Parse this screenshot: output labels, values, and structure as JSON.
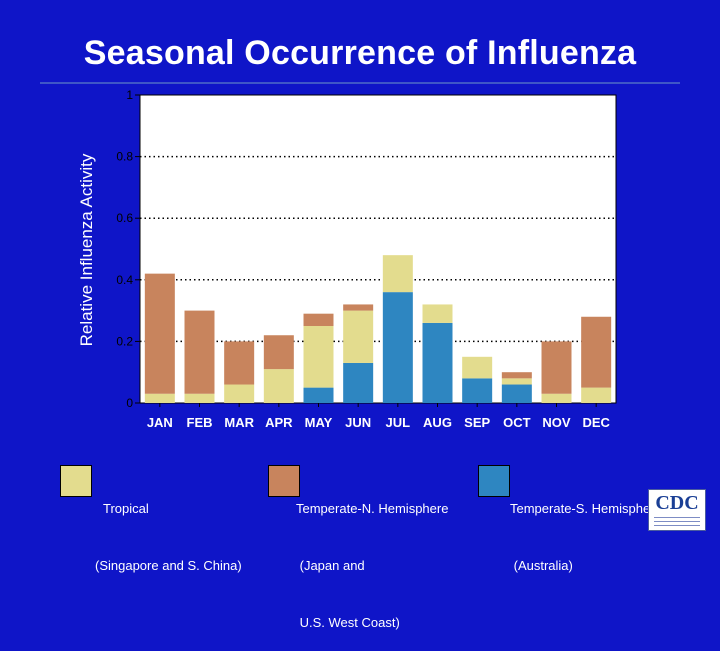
{
  "title": "Seasonal Occurrence of Influenza",
  "logo_text": "CDC",
  "colors": {
    "background": "#0f15c8",
    "tropical": "#e3dc8e",
    "temperate_north": "#c8845d",
    "temperate_south": "#2e86c1"
  },
  "legend": [
    {
      "key": "tropical",
      "lines": [
        "Tropical",
        "(Singapore and S. China)"
      ]
    },
    {
      "key": "temperate_north",
      "lines": [
        "Temperate-N. Hemisphere",
        " (Japan and",
        " U.S. West Coast)"
      ]
    },
    {
      "key": "temperate_south",
      "lines": [
        "Temperate-S. Hemisphere",
        " (Australia)"
      ]
    }
  ],
  "chart_data": {
    "type": "bar",
    "stacked": true,
    "ylabel": "Relative Influenza Activity",
    "xlabel": "",
    "ylim": [
      0,
      1
    ],
    "y_ticks": [
      0,
      0.2,
      0.4,
      0.6,
      0.8,
      1
    ],
    "y_tick_labels": [
      "0",
      "0.2",
      "0.4",
      "0.6",
      "0.8",
      "1"
    ],
    "grid": "horizontal dotted",
    "categories": [
      "JAN",
      "FEB",
      "MAR",
      "APR",
      "MAY",
      "JUN",
      "JUL",
      "AUG",
      "SEP",
      "OCT",
      "NOV",
      "DEC"
    ],
    "series": [
      {
        "name": "Temperate-S. Hemisphere",
        "key": "temperate_south",
        "values": [
          0,
          0,
          0,
          0,
          0.05,
          0.13,
          0.36,
          0.26,
          0.08,
          0.06,
          0,
          0
        ]
      },
      {
        "name": "Tropical",
        "key": "tropical",
        "values": [
          0.03,
          0.03,
          0.06,
          0.11,
          0.2,
          0.17,
          0.12,
          0.06,
          0.07,
          0.02,
          0.03,
          0.05
        ]
      },
      {
        "name": "Temperate-N. Hemisphere",
        "key": "temperate_north",
        "values": [
          0.39,
          0.27,
          0.14,
          0.11,
          0.04,
          0.02,
          0,
          0,
          0,
          0.02,
          0.17,
          0.23
        ]
      }
    ]
  }
}
